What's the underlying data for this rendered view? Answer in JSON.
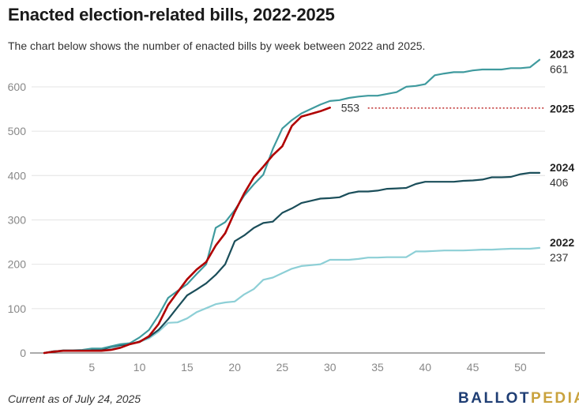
{
  "title": "Enacted election-related bills, 2022-2025",
  "subtitle": "The chart below shows the number of enacted bills by week between 2022 and 2025.",
  "footer": "Current as of July 24, 2025",
  "logo": {
    "part1": "BALLOT",
    "part2": "PEDIA"
  },
  "chart_data": {
    "type": "line",
    "title": "Enacted election-related bills, 2022-2025",
    "xlabel": "",
    "ylabel": "",
    "xlim": [
      0,
      52
    ],
    "ylim": [
      0,
      680
    ],
    "xticks": [
      5,
      10,
      15,
      20,
      25,
      30,
      35,
      40,
      45,
      50
    ],
    "yticks": [
      0,
      100,
      200,
      300,
      400,
      500,
      600
    ],
    "grid": "horizontal",
    "series": [
      {
        "name": "2022",
        "color": "#8dcfd6",
        "end_label": "237",
        "x": [
          0,
          1,
          2,
          3,
          4,
          5,
          6,
          7,
          8,
          9,
          10,
          11,
          12,
          13,
          14,
          15,
          16,
          17,
          18,
          19,
          20,
          21,
          22,
          23,
          24,
          25,
          26,
          27,
          28,
          29,
          30,
          31,
          32,
          33,
          34,
          35,
          36,
          37,
          38,
          39,
          40,
          41,
          42,
          43,
          44,
          45,
          46,
          47,
          48,
          49,
          50,
          51,
          52
        ],
        "y": [
          0,
          4,
          5,
          5,
          6,
          7,
          8,
          10,
          15,
          20,
          25,
          33,
          48,
          68,
          69,
          78,
          92,
          101,
          110,
          114,
          116,
          132,
          144,
          165,
          170,
          180,
          190,
          196,
          198,
          200,
          210,
          210,
          210,
          212,
          215,
          215,
          216,
          216,
          216,
          229,
          229,
          230,
          231,
          231,
          231,
          232,
          233,
          233,
          234,
          235,
          235,
          235,
          237
        ]
      },
      {
        "name": "2024",
        "color": "#1b4e5a",
        "end_label": "406",
        "x": [
          0,
          1,
          2,
          3,
          4,
          5,
          6,
          7,
          8,
          9,
          10,
          11,
          12,
          13,
          14,
          15,
          16,
          17,
          18,
          19,
          20,
          21,
          22,
          23,
          24,
          25,
          26,
          27,
          28,
          29,
          30,
          31,
          32,
          33,
          34,
          35,
          36,
          37,
          38,
          39,
          40,
          41,
          42,
          43,
          44,
          45,
          46,
          47,
          48,
          49,
          50,
          51,
          52
        ],
        "y": [
          0,
          4,
          5,
          5,
          5,
          6,
          7,
          14,
          18,
          20,
          26,
          36,
          52,
          76,
          103,
          130,
          143,
          157,
          176,
          200,
          252,
          265,
          282,
          293,
          296,
          316,
          326,
          338,
          343,
          348,
          349,
          351,
          360,
          364,
          364,
          366,
          370,
          371,
          372,
          381,
          386,
          386,
          386,
          386,
          388,
          389,
          391,
          396,
          396,
          397,
          403,
          406,
          406
        ]
      },
      {
        "name": "2023",
        "color": "#3f9a9e",
        "end_label": "661",
        "x": [
          0,
          1,
          2,
          3,
          4,
          5,
          6,
          7,
          8,
          9,
          10,
          11,
          12,
          13,
          14,
          15,
          16,
          17,
          18,
          19,
          20,
          21,
          22,
          23,
          24,
          25,
          26,
          27,
          28,
          29,
          30,
          31,
          32,
          33,
          34,
          35,
          36,
          37,
          38,
          39,
          40,
          41,
          42,
          43,
          44,
          45,
          46,
          47,
          48,
          49,
          50,
          51,
          52
        ],
        "y": [
          0,
          3,
          6,
          6,
          7,
          10,
          10,
          15,
          20,
          22,
          35,
          52,
          85,
          124,
          140,
          155,
          178,
          200,
          282,
          295,
          322,
          355,
          380,
          402,
          460,
          506,
          525,
          540,
          550,
          560,
          568,
          570,
          575,
          578,
          580,
          580,
          584,
          588,
          600,
          602,
          606,
          626,
          630,
          633,
          633,
          637,
          639,
          639,
          639,
          642,
          642,
          644,
          661
        ]
      },
      {
        "name": "2025",
        "color": "#b00000",
        "end_label": "553",
        "x": [
          0,
          1,
          2,
          3,
          4,
          5,
          6,
          7,
          8,
          9,
          10,
          11,
          12,
          13,
          14,
          15,
          16,
          17,
          18,
          19,
          20,
          21,
          22,
          23,
          24,
          25,
          26,
          27,
          28,
          29,
          30
        ],
        "y": [
          0,
          3,
          5,
          5,
          5,
          5,
          5,
          7,
          12,
          20,
          25,
          38,
          65,
          108,
          137,
          166,
          188,
          205,
          242,
          270,
          318,
          360,
          396,
          420,
          446,
          466,
          512,
          533,
          539,
          545,
          553
        ]
      }
    ]
  }
}
